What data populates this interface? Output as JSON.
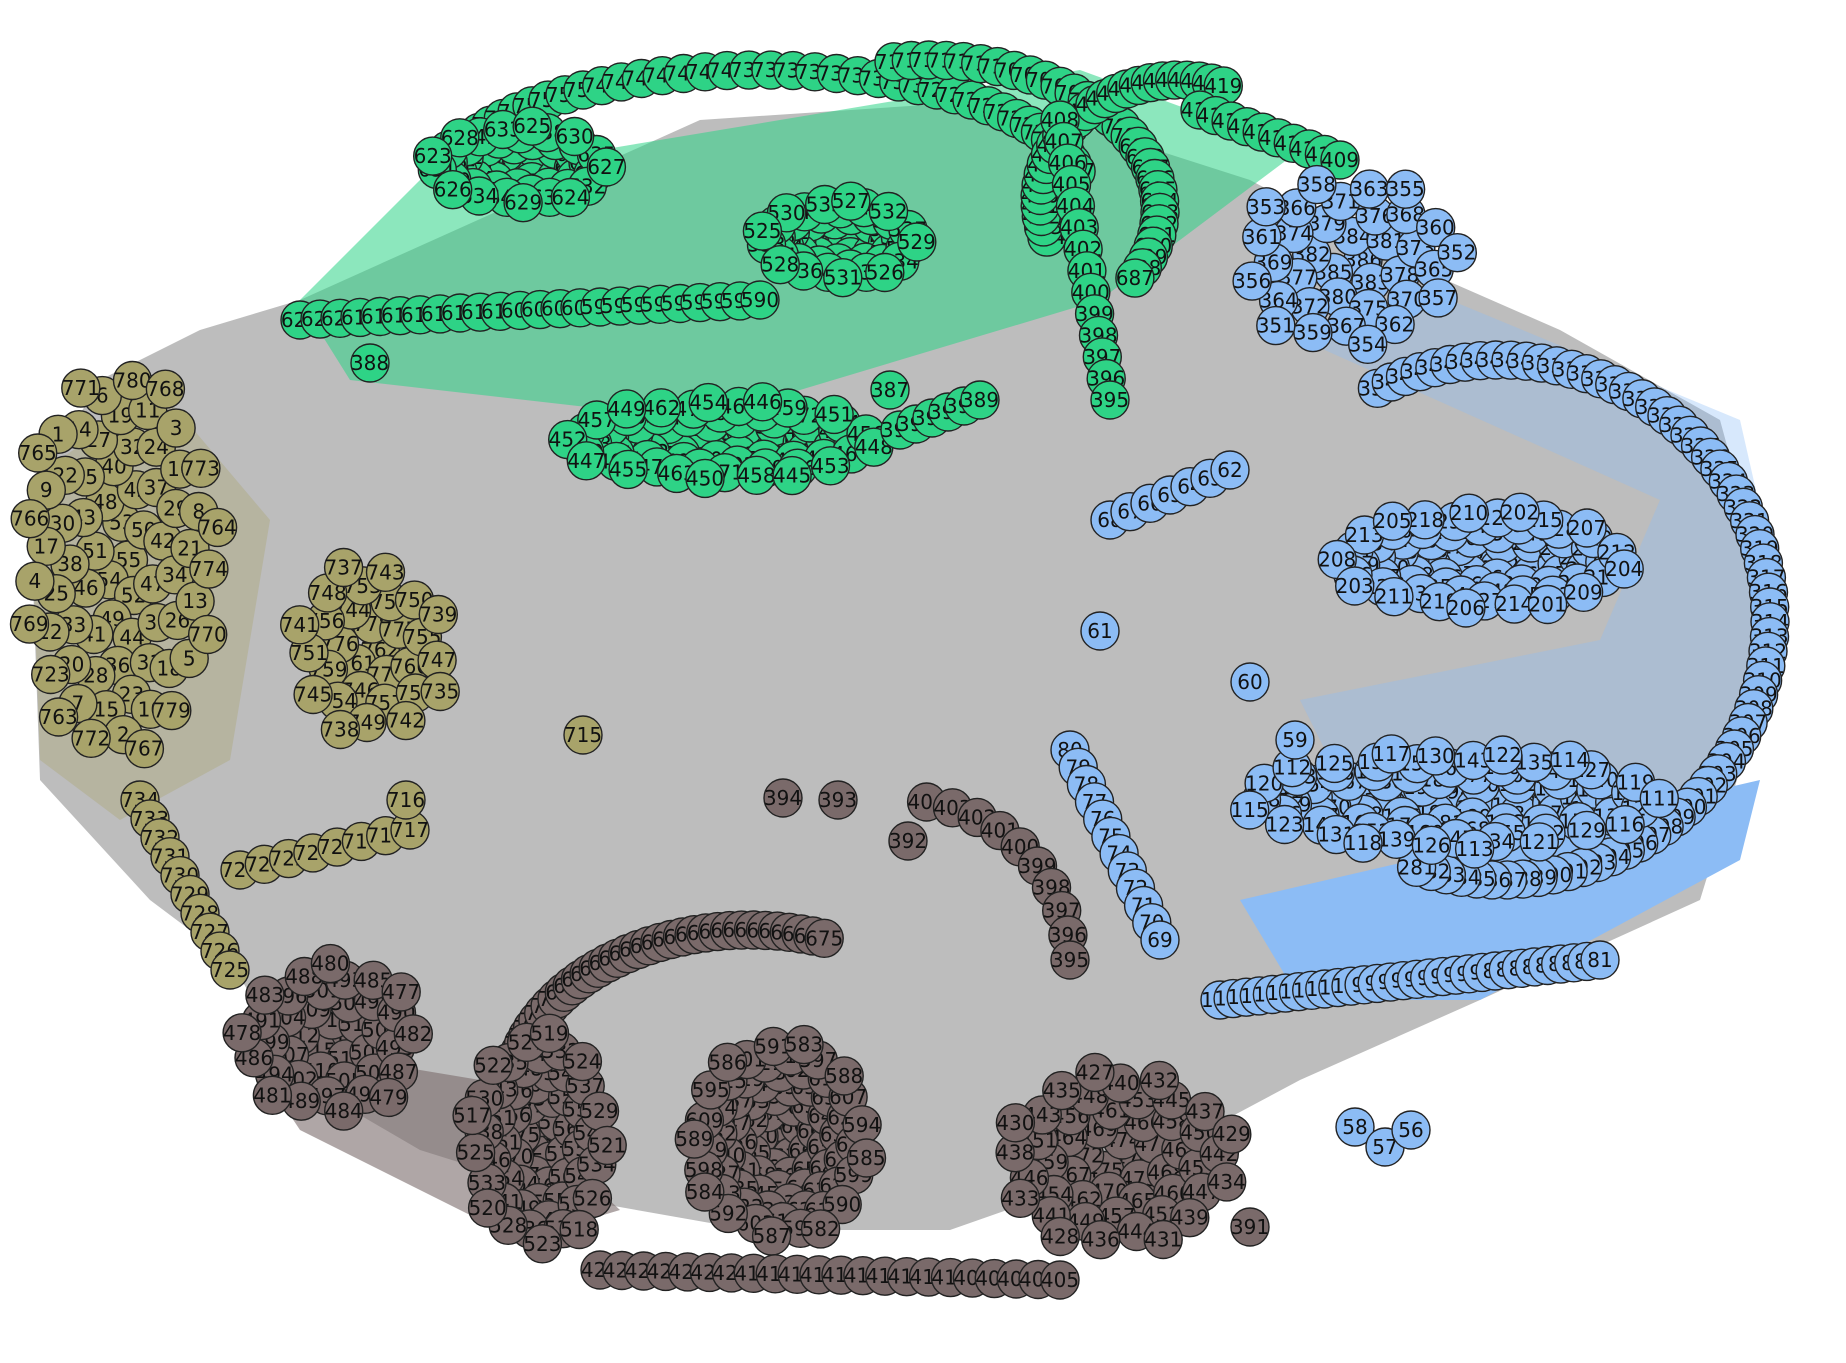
{
  "graph": {
    "colors": {
      "edge_default": "#bdbdbd",
      "node_stroke": "#222222",
      "label": "#111111"
    },
    "communities": [
      {
        "id": "green",
        "color": "#2ed386",
        "labels": [
          "746",
          "744",
          "760",
          "759",
          "758",
          "757",
          "756",
          "755",
          "754",
          "753",
          "752",
          "751",
          "750",
          "749",
          "748",
          "747",
          "745",
          "743",
          "742",
          "741",
          "739",
          "738",
          "737",
          "735",
          "734",
          "733",
          "732",
          "731",
          "730",
          "729",
          "728",
          "727",
          "726",
          "725",
          "724",
          "723",
          "722",
          "721",
          "720",
          "719",
          "718",
          "717",
          "716",
          "715",
          "714",
          "713",
          "712",
          "711",
          "710",
          "709",
          "708",
          "707",
          "706",
          "705",
          "704",
          "703",
          "702",
          "701",
          "700",
          "699",
          "698",
          "697",
          "696",
          "695",
          "694",
          "693",
          "692",
          "691",
          "690",
          "689",
          "688",
          "687",
          "686",
          "685",
          "684",
          "683",
          "682",
          "681",
          "680",
          "679",
          "678",
          "677",
          "676",
          "675",
          "674",
          "673",
          "672",
          "671",
          "670",
          "669",
          "668",
          "667",
          "666",
          "665",
          "664",
          "663",
          "662",
          "661",
          "659",
          "658",
          "657",
          "656",
          "655",
          "654",
          "653",
          "652",
          "651",
          "650",
          "649",
          "647",
          "646",
          "645",
          "644",
          "643",
          "640",
          "639",
          "638",
          "637",
          "636",
          "635",
          "634",
          "633",
          "632",
          "631",
          "630",
          "629",
          "628",
          "627",
          "626",
          "625",
          "624",
          "623",
          "622",
          "621",
          "620",
          "619",
          "618",
          "617",
          "615",
          "614",
          "613",
          "612",
          "611",
          "609",
          "607",
          "603",
          "601",
          "599",
          "598",
          "597",
          "596",
          "595",
          "594",
          "592",
          "591",
          "590",
          "589",
          "588",
          "587",
          "586",
          "585",
          "584",
          "583",
          "582",
          "581",
          "579",
          "577",
          "576",
          "575",
          "574",
          "573",
          "572",
          "571",
          "570",
          "569",
          "567",
          "566",
          "565",
          "564",
          "563",
          "562",
          "561",
          "559",
          "557",
          "556",
          "555",
          "554",
          "553",
          "552",
          "551",
          "550",
          "549",
          "548",
          "547",
          "546",
          "545",
          "544",
          "543",
          "542",
          "541",
          "540",
          "539",
          "538",
          "537",
          "536",
          "535",
          "534",
          "533",
          "532",
          "531",
          "530",
          "529",
          "528",
          "527",
          "526",
          "525",
          "524",
          "523",
          "522",
          "521",
          "520",
          "519",
          "518",
          "517",
          "516",
          "515",
          "514",
          "513",
          "512",
          "511",
          "510",
          "509",
          "508",
          "507",
          "506",
          "505",
          "504",
          "503",
          "502",
          "501",
          "500",
          "499",
          "498",
          "497",
          "496",
          "495",
          "494",
          "493",
          "492",
          "491",
          "490",
          "489",
          "488",
          "487",
          "486",
          "485",
          "484",
          "483",
          "482",
          "481",
          "480",
          "479",
          "478",
          "477",
          "476",
          "475",
          "474",
          "473",
          "472",
          "471",
          "470",
          "469",
          "468",
          "467",
          "466",
          "465",
          "464",
          "463",
          "462",
          "461",
          "460",
          "459",
          "458",
          "457",
          "456",
          "455",
          "454",
          "453",
          "452",
          "451",
          "450",
          "449",
          "448",
          "447",
          "446",
          "445",
          "444",
          "443",
          "442",
          "441",
          "440",
          "439",
          "438",
          "437",
          "436",
          "435",
          "434",
          "433",
          "432",
          "431",
          "430",
          "429",
          "428",
          "427",
          "426",
          "425",
          "424",
          "423",
          "422",
          "421",
          "420",
          "419",
          "418",
          "417",
          "416",
          "415",
          "414",
          "413",
          "412",
          "411",
          "410",
          "409",
          "408",
          "407",
          "406",
          "405",
          "404",
          "403",
          "402",
          "401",
          "400",
          "399",
          "398",
          "397",
          "396",
          "395",
          "394",
          "393",
          "392",
          "391",
          "390",
          "389",
          "388",
          "387",
          "386",
          "385",
          "384",
          "383",
          "382",
          "381",
          "380",
          "379",
          "378",
          "377",
          "376",
          "375",
          "374",
          "373",
          "372",
          "371",
          "370",
          "369",
          "368",
          "367",
          "366",
          "365",
          "364",
          "363",
          "362",
          "361",
          "360",
          "359",
          "358",
          "357",
          "356",
          "355",
          "354",
          "353",
          "352",
          "351",
          "350",
          "349",
          "348",
          "347",
          "346",
          "345",
          "344",
          "343",
          "342",
          "341",
          "340",
          "339",
          "338",
          "337",
          "336",
          "335",
          "334",
          "333",
          "332",
          "331",
          "330",
          "329",
          "328",
          "327",
          "326",
          "325",
          "324",
          "323",
          "322",
          "321",
          "320",
          "319",
          "318",
          "317",
          "316",
          "315",
          "314",
          "313",
          "312",
          "311",
          "310",
          "309",
          "308",
          "307",
          "306",
          "305",
          "304",
          "303",
          "302",
          "301",
          "300",
          "299",
          "298",
          "297",
          "296",
          "295",
          "294",
          "293",
          "292",
          "291",
          "290",
          "289",
          "288",
          "287",
          "286",
          "285",
          "284",
          "283",
          "282",
          "281",
          "280",
          "279",
          "278",
          "277",
          "276",
          "275",
          "274",
          "273",
          "272",
          "271",
          "270",
          "269",
          "268",
          "267",
          "266",
          "265",
          "264",
          "263",
          "262",
          "261",
          "260",
          "259",
          "258",
          "257",
          "256",
          "255",
          "254",
          "253",
          "252",
          "251",
          "250",
          "249",
          "248",
          "247",
          "246",
          "245",
          "244",
          "243",
          "242",
          "241",
          "240",
          "239",
          "238",
          "237",
          "236",
          "235",
          "234",
          "233",
          "232",
          "231",
          "230",
          "229",
          "228",
          "227",
          "226",
          "225",
          "224",
          "223",
          "222",
          "221",
          "220",
          "219",
          "218",
          "217",
          "216",
          "215",
          "214",
          "213",
          "212",
          "211",
          "210",
          "209",
          "208",
          "207",
          "206",
          "205",
          "204",
          "203",
          "202",
          "201",
          "200",
          "199",
          "198",
          "197",
          "196",
          "195",
          "194",
          "193",
          "192",
          "191",
          "190",
          "189",
          "188",
          "187",
          "186",
          "185",
          "184",
          "183",
          "182",
          "181",
          "180",
          "179",
          "178",
          "177",
          "176",
          "175",
          "174",
          "173",
          "172",
          "171",
          "170",
          "169",
          "168",
          "167",
          "166",
          "165",
          "164",
          "163",
          "162",
          "161",
          "160",
          "159",
          "158",
          "157",
          "156",
          "155",
          "154",
          "153",
          "152",
          "151",
          "150",
          "149",
          "148",
          "147",
          "146",
          "145",
          "144",
          "143",
          "142",
          "141",
          "140",
          "139",
          "138",
          "137",
          "136",
          "135",
          "134",
          "133",
          "132",
          "131",
          "130",
          "129",
          "128",
          "127",
          "126",
          "125",
          "124",
          "123",
          "122",
          "121",
          "120",
          "119",
          "118",
          "117",
          "116",
          "115",
          "114",
          "113",
          "112",
          "111",
          "110",
          "109",
          "108",
          "107",
          "106",
          "105",
          "104",
          "103",
          "102",
          "101",
          "100",
          "99",
          "98",
          "97",
          "96",
          "95",
          "94",
          "93",
          "92",
          "91",
          "90",
          "89",
          "88",
          "87",
          "86",
          "85",
          "84",
          "83",
          "82",
          "81",
          "80",
          "79",
          "78",
          "77",
          "76",
          "75",
          "74",
          "73",
          "72",
          "71",
          "70",
          "69",
          "68",
          "67",
          "66",
          "65",
          "64",
          "63",
          "62",
          "61",
          "60",
          "59",
          "58",
          "57",
          "56",
          "55",
          "54",
          "53",
          "52",
          "51",
          "50",
          "49",
          "48",
          "47",
          "46",
          "45",
          "44",
          "43",
          "42",
          "41",
          "40",
          "39",
          "38",
          "37",
          "36",
          "35",
          "34",
          "33",
          "32",
          "31",
          "30",
          "29",
          "28",
          "27",
          "26",
          "25",
          "24",
          "23",
          "22",
          "21",
          "20",
          "19",
          "18",
          "17",
          "16",
          "15",
          "14",
          "13",
          "12",
          "11",
          "10",
          "9",
          "8",
          "7",
          "6",
          "5",
          "4",
          "3",
          "2",
          "1",
          "774",
          "723",
          "780",
          "779",
          "766",
          "773",
          "772",
          "771",
          "770",
          "769",
          "768",
          "767",
          "765",
          "764",
          "763",
          "762",
          "761",
          "778",
          "777",
          "776",
          "775"
        ]
      }
    ]
  }
}
